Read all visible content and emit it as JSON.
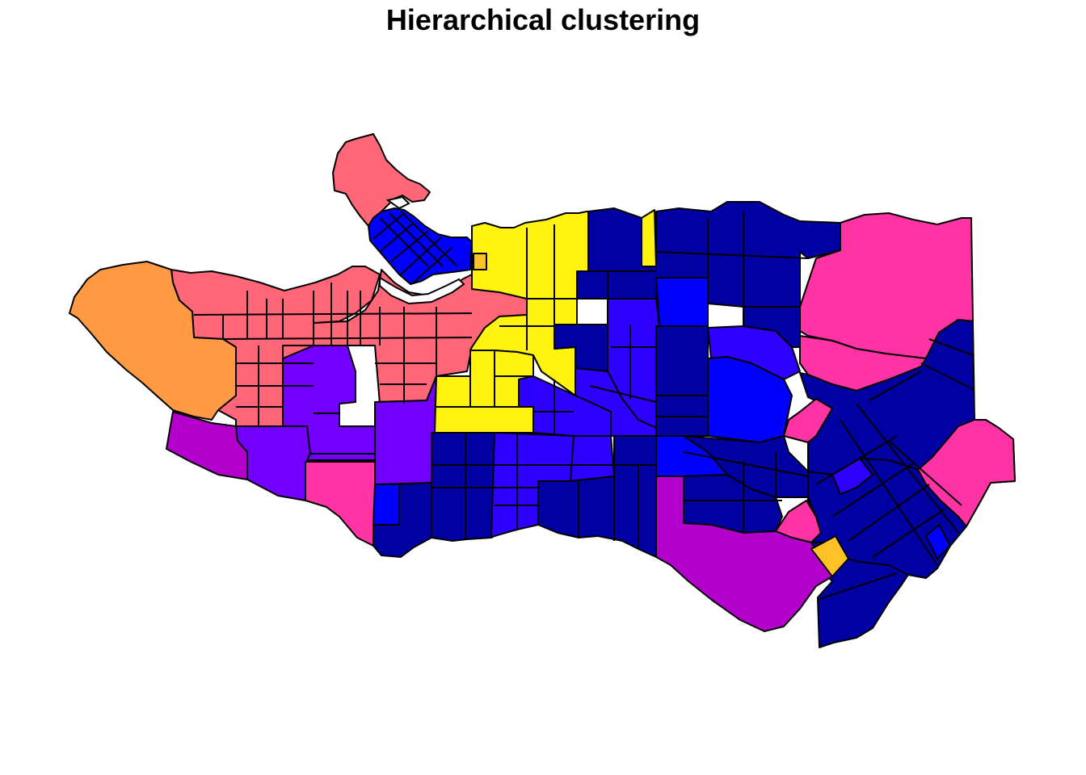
{
  "map": {
    "title": "Hierarchical clustering"
  },
  "palette": {
    "coral": "#FF6677",
    "orange": "#FF9944",
    "yellow": "#FFF30F",
    "amber": "#FFC126",
    "violet": "#7300FF",
    "magenta": "#B300CC",
    "pink": "#FF33A3",
    "blue": "#0000FF",
    "indigo": "#2E00FF",
    "navy": "#0000A3",
    "outline": "#000000",
    "background": "#FFFFFF"
  }
}
